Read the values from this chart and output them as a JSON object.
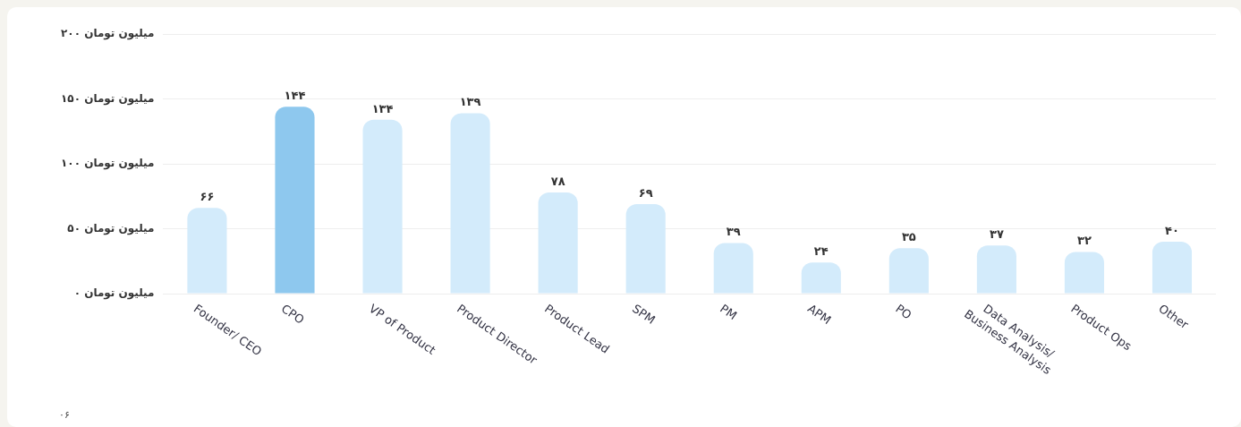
{
  "chart_data": {
    "type": "bar",
    "categories": [
      "Founder/ CEO",
      "CPO",
      "VP of Product",
      "Product Director",
      "Product Lead",
      "SPM",
      "PM",
      "APM",
      "PO",
      "Data Analysis/ Business Analysis",
      "Product Ops",
      "Other"
    ],
    "values": [
      66,
      144,
      134,
      139,
      78,
      69,
      39,
      24,
      35,
      37,
      32,
      40
    ],
    "value_labels": [
      "۶۶",
      "۱۴۴",
      "۱۳۴",
      "۱۳۹",
      "۷۸",
      "۶۹",
      "۳۹",
      "۲۴",
      "۳۵",
      "۳۷",
      "۳۲",
      "۴۰"
    ],
    "colors": [
      "#d3ebfb",
      "#8ec8ee",
      "#d3ebfb",
      "#d3ebfb",
      "#d3ebfb",
      "#d3ebfb",
      "#d3ebfb",
      "#d3ebfb",
      "#d3ebfb",
      "#d3ebfb",
      "#d3ebfb",
      "#d3ebfb"
    ],
    "ylim": [
      0,
      200
    ],
    "yticks": [
      {
        "value": 0,
        "label": "۰ میلیون تومان"
      },
      {
        "value": 50,
        "label": "۵۰ میلیون تومان"
      },
      {
        "value": 100,
        "label": "۱۰۰ میلیون تومان"
      },
      {
        "value": 150,
        "label": "۱۵۰ میلیون تومان"
      },
      {
        "value": 200,
        "label": "۲۰۰ میلیون تومان"
      }
    ],
    "grid": "y",
    "legend": false,
    "annotations": [
      "۰۶"
    ]
  }
}
